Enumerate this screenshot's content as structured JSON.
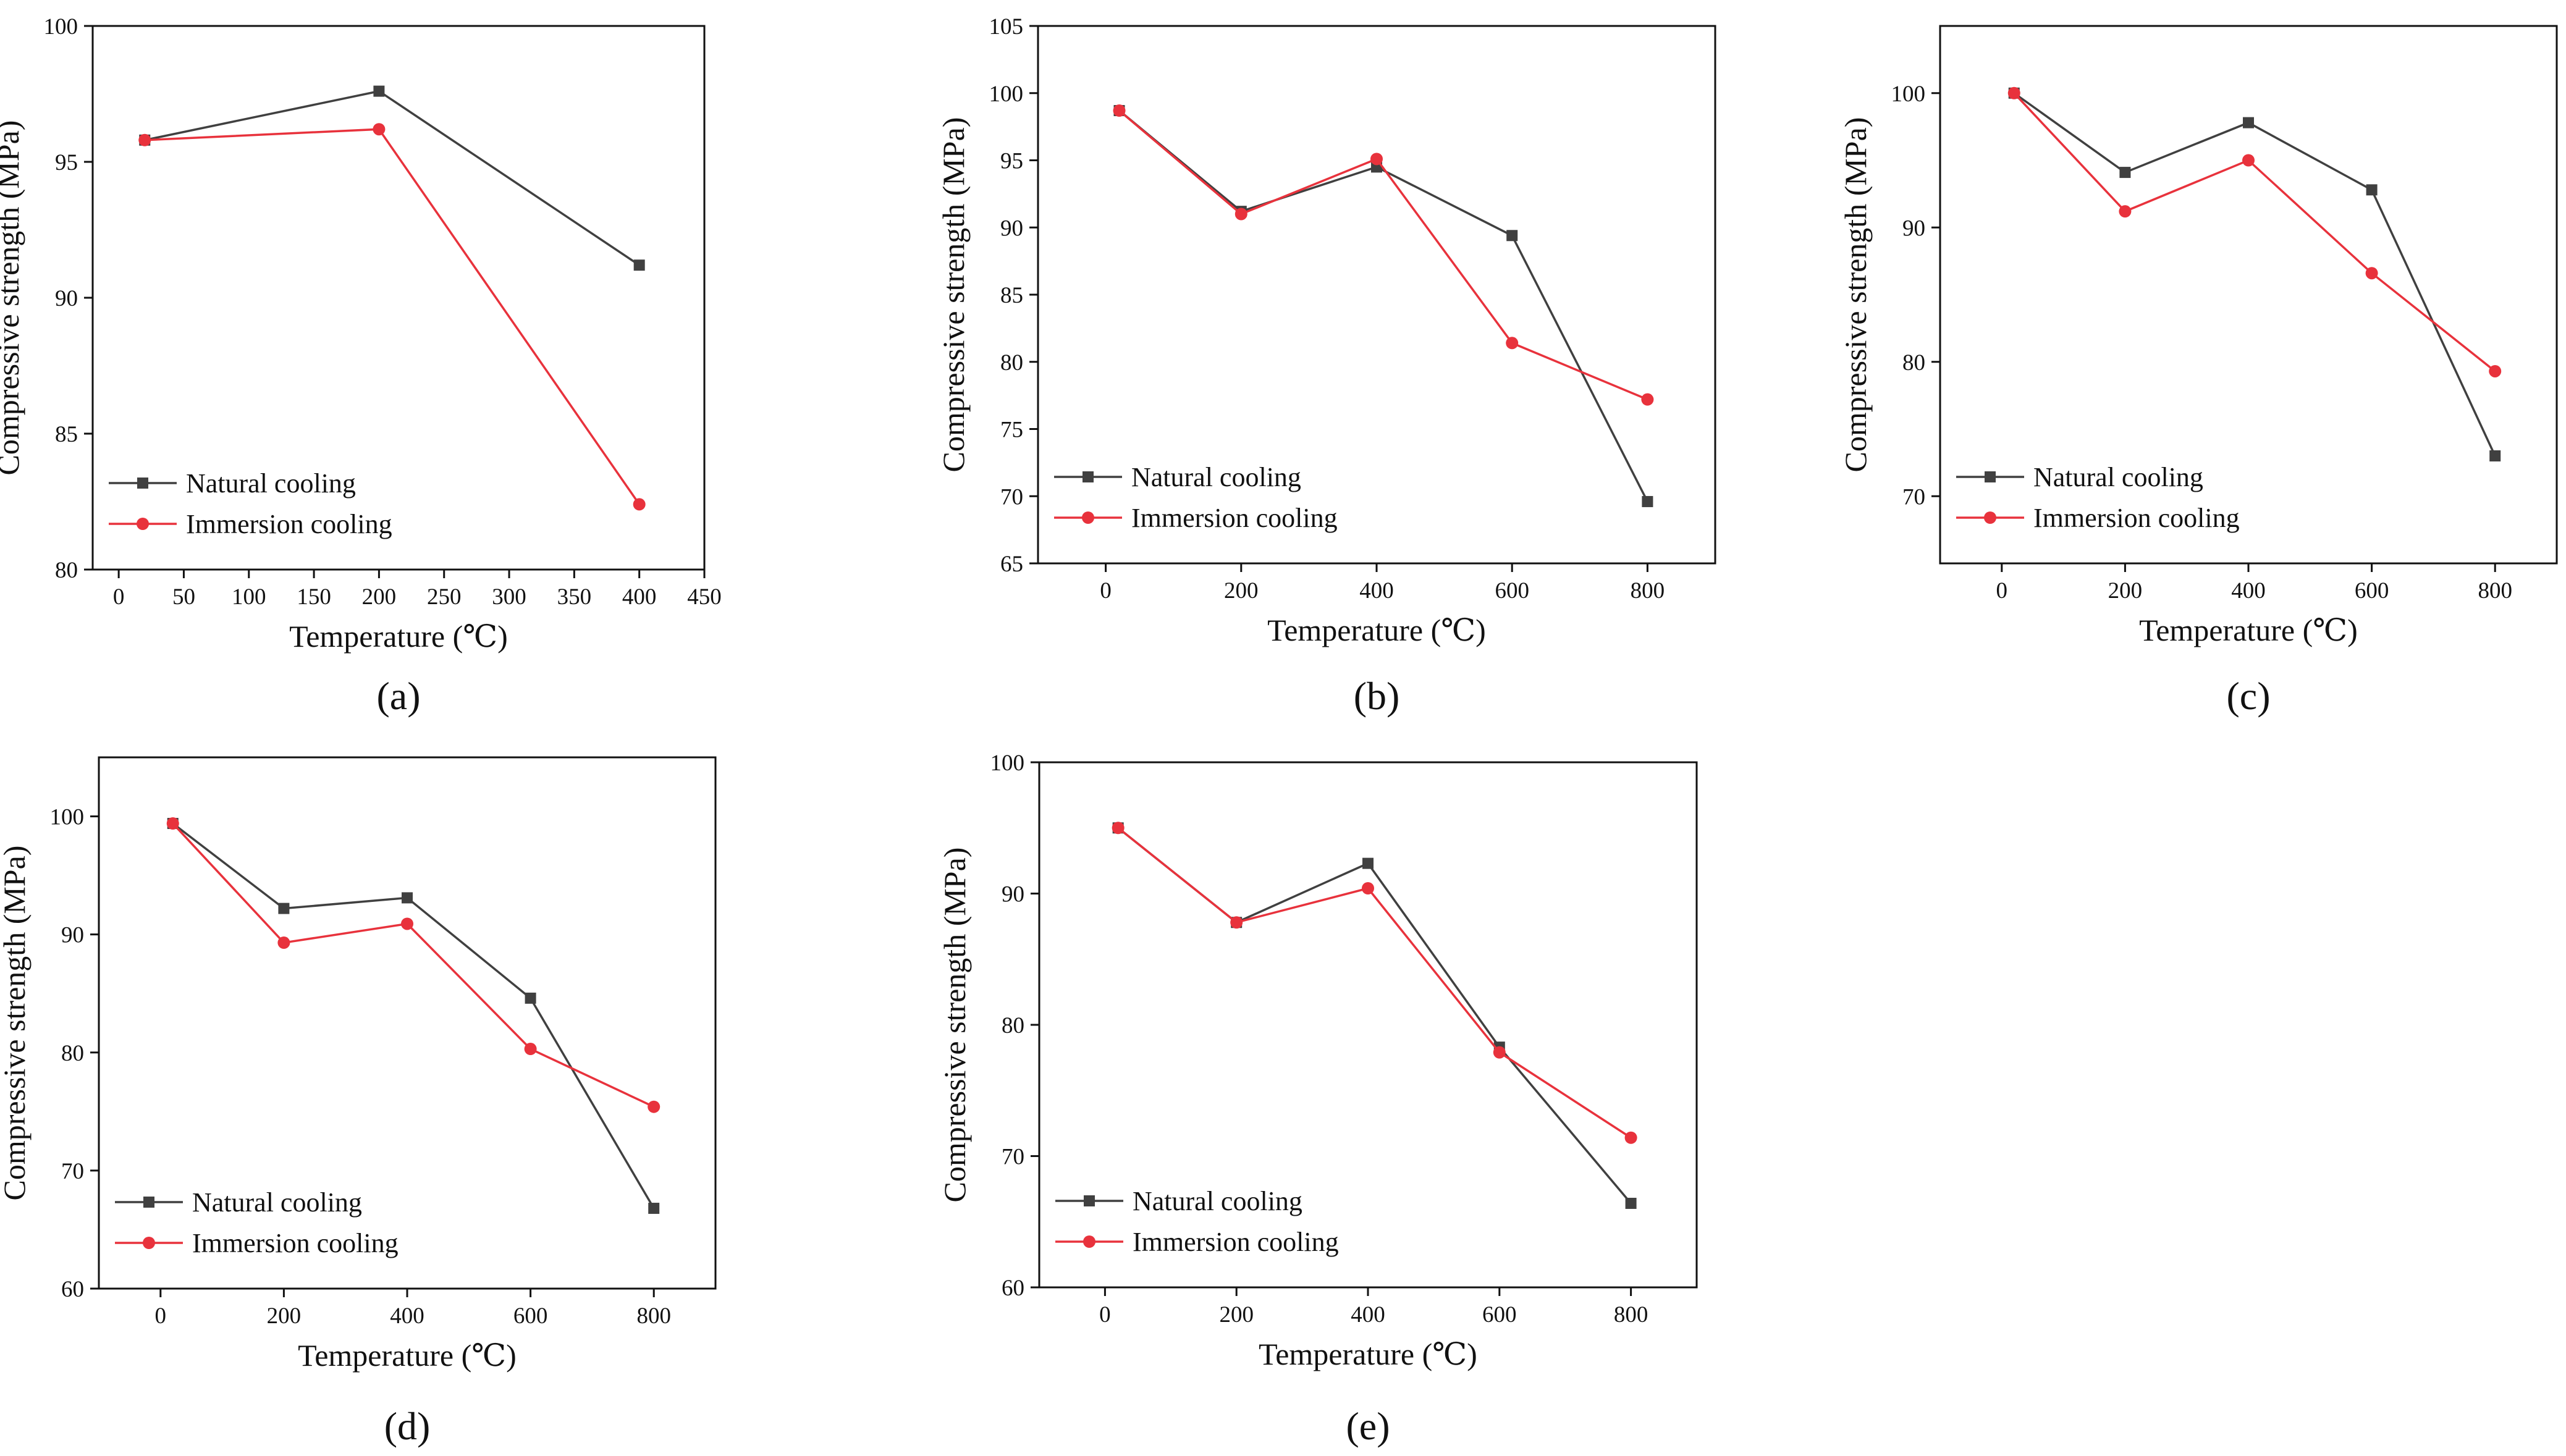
{
  "colors": {
    "natural": "#404040",
    "immersion": "#e8323c",
    "axis": "#111111"
  },
  "chart_data": [
    {
      "type": "line",
      "panel_label": "(a)",
      "xlabel": "Temperature (℃)",
      "ylabel": "Compressive strength (MPa)",
      "xlim": [
        -20,
        450
      ],
      "ylim": [
        80,
        100
      ],
      "xticks": [
        0,
        50,
        100,
        150,
        200,
        250,
        300,
        350,
        400,
        450
      ],
      "yticks": [
        80,
        85,
        90,
        95,
        100
      ],
      "legend_position": "bottom-left",
      "series": [
        {
          "name": "Natural cooling",
          "marker": "square",
          "x": [
            20,
            200,
            400
          ],
          "y": [
            95.8,
            97.6,
            91.2
          ]
        },
        {
          "name": "Immersion cooling",
          "marker": "circle",
          "x": [
            20,
            200,
            400
          ],
          "y": [
            95.8,
            96.2,
            82.4
          ]
        }
      ]
    },
    {
      "type": "line",
      "panel_label": "(b)",
      "xlabel": "Temperature (℃)",
      "ylabel": "Compressive strength (MPa)",
      "xlim": [
        -100,
        900
      ],
      "ylim": [
        65,
        105
      ],
      "xticks": [
        0,
        200,
        400,
        600,
        800
      ],
      "yticks": [
        65,
        70,
        75,
        80,
        85,
        90,
        95,
        100,
        105
      ],
      "legend_position": "bottom-left",
      "series": [
        {
          "name": "Natural cooling",
          "marker": "square",
          "x": [
            20,
            200,
            400,
            600,
            800
          ],
          "y": [
            98.7,
            91.2,
            94.5,
            89.4,
            69.6
          ]
        },
        {
          "name": "Immersion cooling",
          "marker": "circle",
          "x": [
            20,
            200,
            400,
            600,
            800
          ],
          "y": [
            98.7,
            91.0,
            95.1,
            81.4,
            77.2
          ]
        }
      ]
    },
    {
      "type": "line",
      "panel_label": "(c)",
      "xlabel": "Temperature (℃)",
      "ylabel": "Compressive strength (MPa)",
      "xlim": [
        -100,
        900
      ],
      "ylim": [
        65,
        105
      ],
      "xticks": [
        0,
        200,
        400,
        600,
        800
      ],
      "yticks": [
        70,
        80,
        90,
        100
      ],
      "legend_position": "bottom-left",
      "series": [
        {
          "name": "Natural cooling",
          "marker": "square",
          "x": [
            20,
            200,
            400,
            600,
            800
          ],
          "y": [
            100.0,
            94.1,
            97.8,
            92.8,
            73.0
          ]
        },
        {
          "name": "Immersion cooling",
          "marker": "circle",
          "x": [
            20,
            200,
            400,
            600,
            800
          ],
          "y": [
            100.0,
            91.2,
            95.0,
            86.6,
            79.3
          ]
        }
      ]
    },
    {
      "type": "line",
      "panel_label": "(d)",
      "xlabel": "Temperature (℃)",
      "ylabel": "Compressive strength (MPa)",
      "xlim": [
        -100,
        900
      ],
      "ylim": [
        60,
        105
      ],
      "xticks": [
        0,
        200,
        400,
        600,
        800
      ],
      "yticks": [
        60,
        70,
        80,
        90,
        100
      ],
      "legend_position": "bottom-left",
      "series": [
        {
          "name": "Natural cooling",
          "marker": "square",
          "x": [
            20,
            200,
            400,
            600,
            800
          ],
          "y": [
            99.4,
            92.2,
            93.1,
            84.6,
            66.8
          ]
        },
        {
          "name": "Immersion cooling",
          "marker": "circle",
          "x": [
            20,
            200,
            400,
            600,
            800
          ],
          "y": [
            99.4,
            89.3,
            90.9,
            80.3,
            75.4
          ]
        }
      ]
    },
    {
      "type": "line",
      "panel_label": "(e)",
      "xlabel": "Temperature (℃)",
      "ylabel": "Compressive strength (MPa)",
      "xlim": [
        -100,
        900
      ],
      "ylim": [
        60,
        100
      ],
      "xticks": [
        0,
        200,
        400,
        600,
        800
      ],
      "yticks": [
        60,
        70,
        80,
        90,
        100
      ],
      "legend_position": "bottom-left",
      "series": [
        {
          "name": "Natural cooling",
          "marker": "square",
          "x": [
            20,
            200,
            400,
            600,
            800
          ],
          "y": [
            95.0,
            87.8,
            92.3,
            78.3,
            66.4
          ]
        },
        {
          "name": "Immersion cooling",
          "marker": "circle",
          "x": [
            20,
            200,
            400,
            600,
            800
          ],
          "y": [
            95.0,
            87.8,
            90.4,
            77.9,
            71.4
          ]
        }
      ]
    }
  ]
}
